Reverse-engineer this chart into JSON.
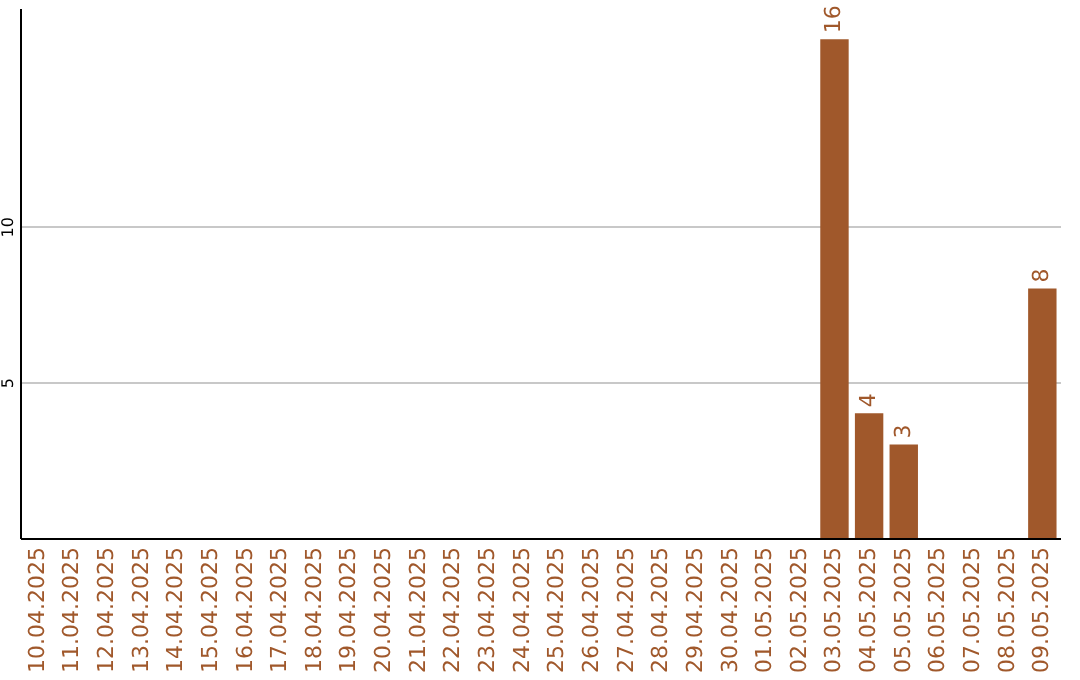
{
  "chart_data": {
    "type": "bar",
    "categories": [
      "10.04.2025",
      "11.04.2025",
      "12.04.2025",
      "13.04.2025",
      "14.04.2025",
      "15.04.2025",
      "16.04.2025",
      "17.04.2025",
      "18.04.2025",
      "19.04.2025",
      "20.04.2025",
      "21.04.2025",
      "22.04.2025",
      "23.04.2025",
      "24.04.2025",
      "25.04.2025",
      "26.04.2025",
      "27.04.2025",
      "28.04.2025",
      "29.04.2025",
      "30.04.2025",
      "01.05.2025",
      "02.05.2025",
      "03.05.2025",
      "04.05.2025",
      "05.05.2025",
      "06.05.2025",
      "07.05.2025",
      "08.05.2025",
      "09.05.2025"
    ],
    "values": [
      0,
      0,
      0,
      0,
      0,
      0,
      0,
      0,
      0,
      0,
      0,
      0,
      0,
      0,
      0,
      0,
      0,
      0,
      0,
      0,
      0,
      0,
      0,
      16,
      4,
      3,
      0,
      0,
      0,
      8
    ],
    "value_labels": [
      null,
      null,
      null,
      null,
      null,
      null,
      null,
      null,
      null,
      null,
      null,
      null,
      null,
      null,
      null,
      null,
      null,
      null,
      null,
      null,
      null,
      null,
      null,
      "16",
      "4",
      "3",
      null,
      null,
      null,
      "8"
    ],
    "color": "#a0582b",
    "ylim": [
      0,
      17
    ],
    "yticks": [
      5,
      10
    ],
    "grid": "y"
  }
}
